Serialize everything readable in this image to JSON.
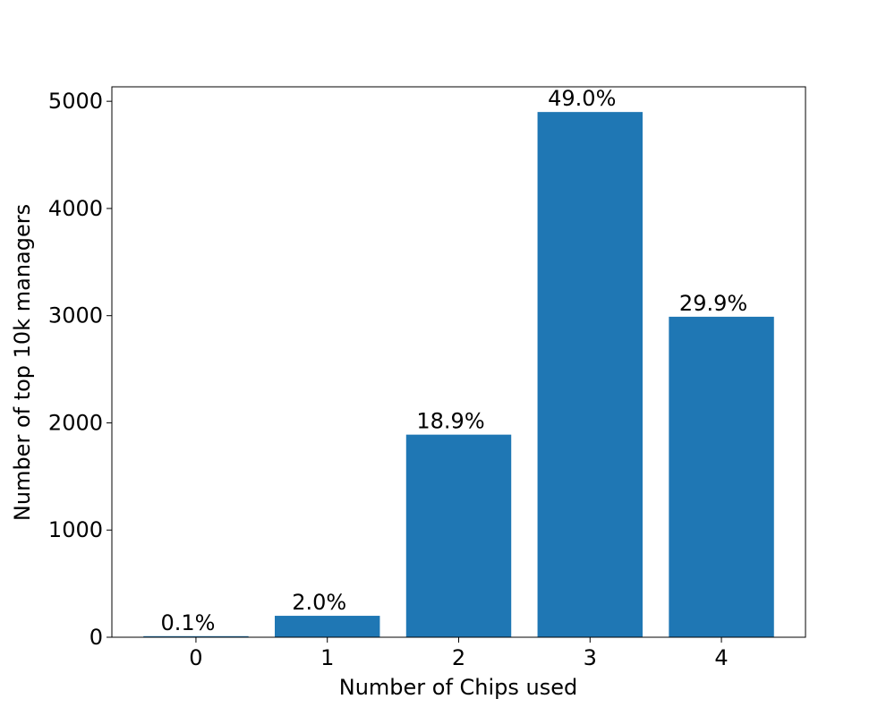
{
  "chart_data": {
    "type": "bar",
    "x_label": "Number of Chips used",
    "y_label": "Number of top 10k managers",
    "x": [
      0,
      1,
      2,
      3,
      4
    ],
    "values": [
      10,
      200,
      1890,
      4900,
      2990
    ],
    "value_labels": [
      "0.1%",
      "2.0%",
      "18.9%",
      "49.0%",
      "29.9%"
    ],
    "color": "#1f77b4",
    "xlim": [
      -0.64,
      4.64
    ],
    "xticks": [
      0,
      1,
      2,
      3,
      4
    ],
    "ylim": [
      0,
      5135
    ],
    "yticks": [
      0,
      1000,
      2000,
      3000,
      4000,
      5000
    ],
    "grid": false
  }
}
